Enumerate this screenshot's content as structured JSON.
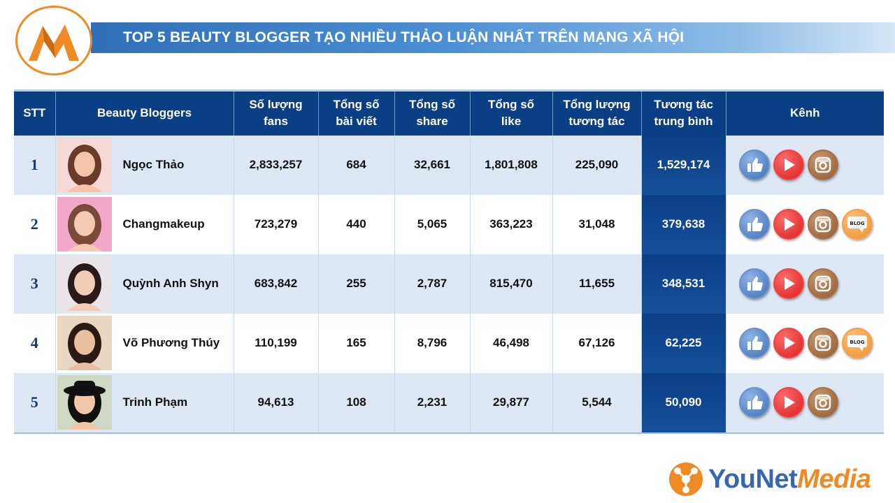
{
  "header": {
    "title": "TOP 5 BEAUTY BLOGGER TẠO NHIỀU THẢO LUẬN NHẤT TRÊN MẠNG XÃ HỘI",
    "logo_icon": "m-mountain-logo"
  },
  "table": {
    "columns": [
      {
        "line1": "STT",
        "line2": ""
      },
      {
        "line1": "Beauty Bloggers",
        "line2": ""
      },
      {
        "line1": "Số lượng",
        "line2": "fans"
      },
      {
        "line1": "Tổng số",
        "line2": "bài viết"
      },
      {
        "line1": "Tổng số",
        "line2": "share"
      },
      {
        "line1": "Tổng số",
        "line2": "like"
      },
      {
        "line1": "Tổng lượng",
        "line2": "tương tác"
      },
      {
        "line1": "Tương tác",
        "line2": "trung bình"
      },
      {
        "line1": "Kênh",
        "line2": ""
      }
    ],
    "rows": [
      {
        "stt": "1",
        "name": "Ngọc Thảo",
        "fans": "2,833,257",
        "posts": "684",
        "shares": "32,661",
        "likes": "1,801,808",
        "interactions": "225,090",
        "avg": "1,529,174",
        "channels": [
          "facebook",
          "youtube",
          "instagram"
        ]
      },
      {
        "stt": "2",
        "name": "Changmakeup",
        "fans": "723,279",
        "posts": "440",
        "shares": "5,065",
        "likes": "363,223",
        "interactions": "31,048",
        "avg": "379,638",
        "channels": [
          "facebook",
          "youtube",
          "instagram",
          "blog"
        ]
      },
      {
        "stt": "3",
        "name": "Quỳnh Anh Shyn",
        "fans": "683,842",
        "posts": "255",
        "shares": "2,787",
        "likes": "815,470",
        "interactions": "11,655",
        "avg": "348,531",
        "channels": [
          "facebook",
          "youtube",
          "instagram"
        ]
      },
      {
        "stt": "4",
        "name": "Võ Phương Thúy",
        "fans": "110,199",
        "posts": "165",
        "shares": "8,796",
        "likes": "46,498",
        "interactions": "67,126",
        "avg": "62,225",
        "channels": [
          "facebook",
          "youtube",
          "instagram",
          "blog"
        ]
      },
      {
        "stt": "5",
        "name": "Trinh Phạm",
        "fans": "94,613",
        "posts": "108",
        "shares": "2,231",
        "likes": "29,877",
        "interactions": "5,544",
        "avg": "50,090",
        "channels": [
          "facebook",
          "youtube",
          "instagram"
        ]
      }
    ]
  },
  "channel_icons": {
    "facebook": "thumbs-up-icon",
    "youtube": "play-icon",
    "instagram": "camera-icon",
    "blog": "blog-bubble-icon"
  },
  "brand": {
    "you": "YouNet",
    "media": "Media"
  },
  "colors": {
    "header_bg": "#0a3f86",
    "row_alt": "#dde8f4",
    "accent_orange": "#f08a24",
    "brand_blue": "#3767b0"
  }
}
